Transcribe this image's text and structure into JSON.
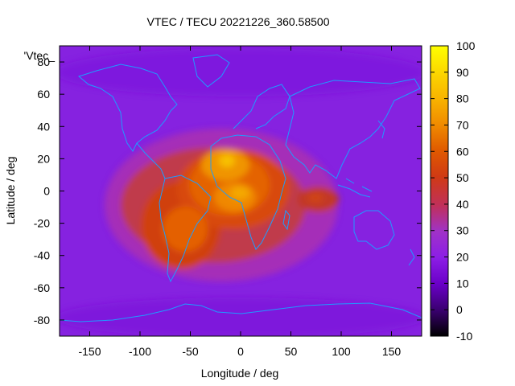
{
  "title": "VTEC / TECU 20221226_360.58500",
  "series_label": "'Vtec_",
  "xlabel": "Longitude / deg",
  "ylabel": "Latitude / deg",
  "chart_data": {
    "type": "heatmap",
    "title": "VTEC / TECU 20221226_360.58500",
    "xlabel": "Longitude / deg",
    "ylabel": "Latitude / deg",
    "x_ticks": [
      -150,
      -100,
      -50,
      0,
      50,
      100,
      150
    ],
    "y_ticks": [
      -80,
      -60,
      -40,
      -20,
      0,
      20,
      40,
      60,
      80
    ],
    "xlim": [
      -180,
      180
    ],
    "ylim": [
      -90,
      90
    ],
    "colorbar": {
      "range": [
        -10,
        100
      ],
      "ticks": [
        -10,
        0,
        10,
        20,
        30,
        40,
        50,
        60,
        70,
        80,
        90,
        100
      ],
      "palette": [
        "#000000",
        "#3a0070",
        "#6a00c8",
        "#8c1ee6",
        "#a032c8",
        "#c0305a",
        "#d03a14",
        "#e05a00",
        "#f08c00",
        "#f8c800",
        "#ffff00"
      ]
    },
    "background_level": 18,
    "features": [
      {
        "name": "south-america-africa-peak",
        "lon": -15,
        "lat": 0,
        "value": 70
      },
      {
        "name": "equatorial-north-africa-peak",
        "lon": -10,
        "lat": 18,
        "value": 76
      },
      {
        "name": "central-africa-peak",
        "lon": 10,
        "lat": 0,
        "value": 68
      },
      {
        "name": "south-america-peak",
        "lon": -65,
        "lat": -25,
        "value": 62
      },
      {
        "name": "indian-ocean-hotspot",
        "lon": 75,
        "lat": -5,
        "value": 46
      }
    ],
    "overlay": "coastlines"
  }
}
